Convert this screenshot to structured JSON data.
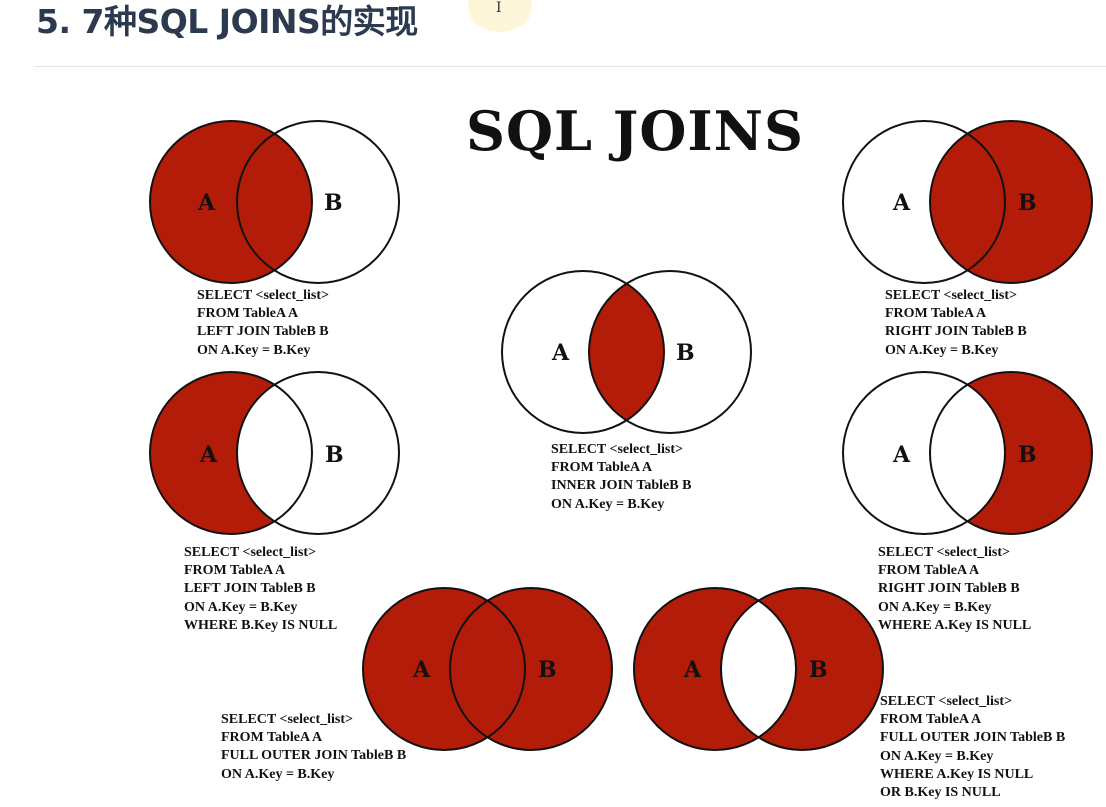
{
  "heading": "5. 7种SQL JOINS的实现",
  "diagram_title": "SQL JOINS",
  "colors": {
    "fill": "#b31c08",
    "stroke": "#111111",
    "heading": "#2b3a4f"
  },
  "joins": [
    {
      "id": "left-join",
      "shaded": "A",
      "label_a": "A",
      "label_b": "B",
      "sql": [
        "SELECT <select_list>",
        "FROM TableA A",
        "LEFT JOIN TableB B",
        "ON A.Key = B.Key"
      ]
    },
    {
      "id": "inner-join",
      "shaded": "A∩B",
      "label_a": "A",
      "label_b": "B",
      "sql": [
        "SELECT <select_list>",
        "FROM TableA A",
        "INNER JOIN TableB B",
        "ON A.Key = B.Key"
      ]
    },
    {
      "id": "right-join",
      "shaded": "B",
      "label_a": "A",
      "label_b": "B",
      "sql": [
        "SELECT <select_list>",
        "FROM TableA A",
        "RIGHT JOIN TableB B",
        "ON A.Key = B.Key"
      ]
    },
    {
      "id": "left-excluding-join",
      "shaded": "A-B",
      "label_a": "A",
      "label_b": "B",
      "sql": [
        "SELECT <select_list>",
        "FROM TableA A",
        "LEFT JOIN TableB B",
        "ON A.Key = B.Key",
        "WHERE B.Key IS NULL"
      ]
    },
    {
      "id": "right-excluding-join",
      "shaded": "B-A",
      "label_a": "A",
      "label_b": "B",
      "sql": [
        "SELECT <select_list>",
        "FROM TableA A",
        "RIGHT JOIN TableB B",
        "ON A.Key = B.Key",
        "WHERE A.Key IS NULL"
      ]
    },
    {
      "id": "full-outer-join",
      "shaded": "A∪B",
      "label_a": "A",
      "label_b": "B",
      "sql": [
        "SELECT <select_list>",
        "FROM TableA A",
        "FULL OUTER JOIN TableB B",
        "ON A.Key = B.Key"
      ]
    },
    {
      "id": "full-outer-excluding-join",
      "shaded": "A⊕B",
      "label_a": "A",
      "label_b": "B",
      "sql": [
        "SELECT <select_list>",
        "FROM TableA A",
        "FULL OUTER JOIN TableB B",
        "ON A.Key = B.Key",
        "WHERE A.Key IS NULL",
        "OR B.Key IS NULL"
      ]
    }
  ]
}
